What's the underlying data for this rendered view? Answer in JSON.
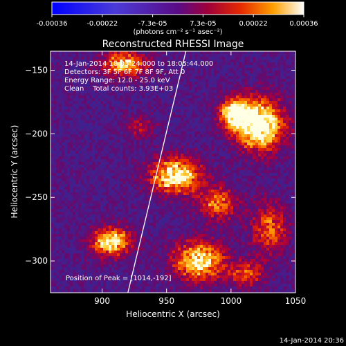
{
  "chart_data": {
    "type": "heatmap",
    "title": "Reconstructed RHESSI Image",
    "xlabel": "Heliocentric X (arcsec)",
    "ylabel": "Heliocentric Y (arcsec)",
    "xlim": [
      860,
      1050
    ],
    "ylim": [
      -325,
      -135
    ],
    "xticks": [
      900,
      950,
      1000,
      1050
    ],
    "yticks": [
      -150,
      -200,
      -250,
      -300
    ],
    "colorbar": {
      "ticks": [
        "-0.00036",
        "-0.00022",
        "-7.3e-05",
        "7.3e-05",
        "0.00022",
        "0.00036"
      ],
      "range": [
        -0.00036,
        0.00036
      ],
      "unit_label": "(photons cm⁻² s⁻¹ asec⁻²)"
    },
    "info_lines": [
      "14-Jan-2014 18:03:24.000 to 18:05:44.000",
      "Detectors: 3F 5F 6F 7F 8F 9F, Att 0",
      "Energy Range: 12.0 - 25.0 keV",
      "Clean    Total counts: 3.93E+03"
    ],
    "peak_label": "Position of Peak = [1014,-192]",
    "peak": [
      1014,
      -192
    ],
    "sources": [
      {
        "x": 1022,
        "y": -193,
        "sx": 13,
        "sy": 14,
        "amp": 1.0
      },
      {
        "x": 1002,
        "y": -184,
        "sx": 8,
        "sy": 9,
        "amp": 0.72
      },
      {
        "x": 957,
        "y": -233,
        "sx": 14,
        "sy": 10,
        "amp": 0.86
      },
      {
        "x": 990,
        "y": -255,
        "sx": 11,
        "sy": 9,
        "amp": 0.55
      },
      {
        "x": 917,
        "y": -145,
        "sx": 12,
        "sy": 7,
        "amp": 0.7
      },
      {
        "x": 907,
        "y": -285,
        "sx": 11,
        "sy": 8,
        "amp": 0.8
      },
      {
        "x": 975,
        "y": -300,
        "sx": 14,
        "sy": 11,
        "amp": 0.78
      },
      {
        "x": 1030,
        "y": -275,
        "sx": 10,
        "sy": 14,
        "amp": 0.5
      },
      {
        "x": 1012,
        "y": -310,
        "sx": 10,
        "sy": 7,
        "amp": 0.45
      },
      {
        "x": 930,
        "y": -195,
        "sx": 8,
        "sy": 6,
        "amp": 0.3
      }
    ],
    "limb_line": {
      "x1": 920,
      "y1": -325,
      "x2": 965,
      "y2": -135
    }
  },
  "timestamp": "14-Jan-2014 20:36"
}
